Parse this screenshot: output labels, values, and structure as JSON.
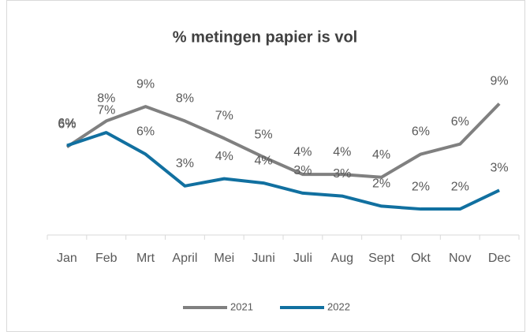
{
  "chart_data": {
    "type": "line",
    "title": "% metingen papier is vol",
    "categories": [
      "Jan",
      "Feb",
      "Mrt",
      "April",
      "Mei",
      "Juni",
      "Juli",
      "Aug",
      "Sept",
      "Okt",
      "Nov",
      "Dec"
    ],
    "series": [
      {
        "name": "2021",
        "color": "#808080",
        "values": [
          6.1,
          7.9,
          8.9,
          7.9,
          6.7,
          5.4,
          4.2,
          4.2,
          4.0,
          5.6,
          6.3,
          9.1
        ],
        "value_labels": [
          "6%",
          "8%",
          "9%",
          "8%",
          "7%",
          "5%",
          "4%",
          "4%",
          "4%",
          "6%",
          "6%",
          "9%"
        ]
      },
      {
        "name": "2022",
        "color": "#1170a0",
        "values": [
          6.2,
          7.1,
          5.6,
          3.4,
          3.9,
          3.6,
          2.9,
          2.7,
          2.0,
          1.8,
          1.8,
          3.1
        ],
        "value_labels": [
          "6%",
          "7%",
          "6%",
          "3%",
          "4%",
          "4%",
          "3%",
          "3%",
          "2%",
          "2%",
          "2%",
          "3%"
        ]
      }
    ],
    "ylim": [
      0,
      10
    ],
    "legend": "bottom"
  }
}
